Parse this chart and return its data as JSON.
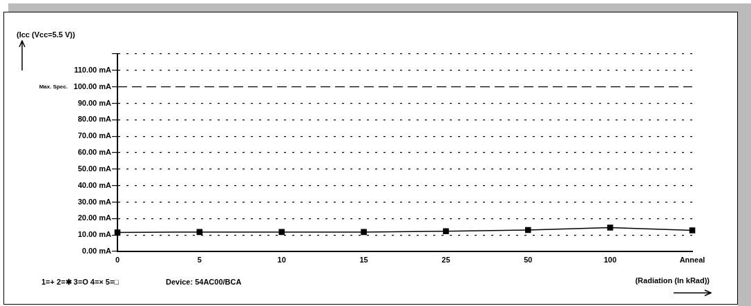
{
  "chart_data": {
    "type": "line",
    "ylabel": "(Icc (Vcc=5.5 V))",
    "xlabel": "(Radiation (In kRad))",
    "categories": [
      "0",
      "5",
      "10",
      "15",
      "25",
      "50",
      "100",
      "Anneal"
    ],
    "series": [
      {
        "color": "#000000",
        "values": [
          11.5,
          11.8,
          11.8,
          11.8,
          12.3,
          13,
          14.5,
          12.8
        ]
      }
    ],
    "ylim": [
      0,
      120
    ],
    "yticks": [
      {
        "value": 0,
        "label": "0.00 mA"
      },
      {
        "value": 10,
        "label": "10.00 mA"
      },
      {
        "value": 20,
        "label": "20.00 mA"
      },
      {
        "value": 30,
        "label": "30.00 mA"
      },
      {
        "value": 40,
        "label": "40.00 mA"
      },
      {
        "value": 50,
        "label": "50.00 mA"
      },
      {
        "value": 60,
        "label": "60.00 mA"
      },
      {
        "value": 70,
        "label": "70.00 mA"
      },
      {
        "value": 80,
        "label": "80.00 mA"
      },
      {
        "value": 90,
        "label": "90.00 mA"
      },
      {
        "value": 100,
        "label": "100.00 mA"
      },
      {
        "value": 110,
        "label": "110.00 mA"
      },
      {
        "value": 120,
        "label": null
      }
    ],
    "ref_lines": [
      {
        "axis": "y",
        "value": 100,
        "label": "Max. Spec.",
        "color": "#000000",
        "line_style": "dashed"
      }
    ],
    "grid": "y",
    "legend": false,
    "marker": "square",
    "line_style": "solid",
    "annotations": [
      "1=+ 2=✱ 3=O 4=× 5=□",
      "Device: 54AC00/BCA"
    ]
  }
}
